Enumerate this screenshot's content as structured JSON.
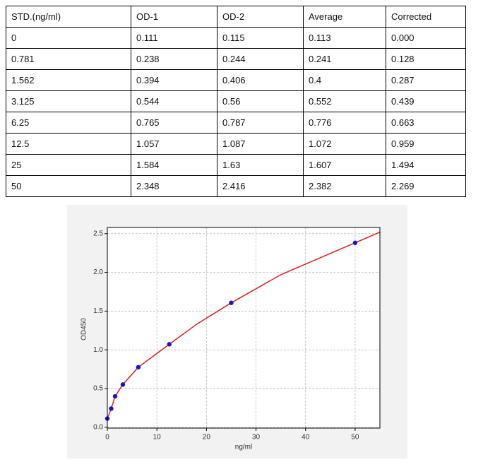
{
  "table": {
    "header": [
      "STD.(ng/ml)",
      "OD-1",
      "OD-2",
      "Average",
      "Corrected"
    ],
    "rows": [
      [
        "0",
        "0.111",
        "0.115",
        "0.113",
        "0.000"
      ],
      [
        "0.781",
        "0.238",
        "0.244",
        "0.241",
        "0.128"
      ],
      [
        "1.562",
        "0.394",
        "0.406",
        "0.4",
        "0.287"
      ],
      [
        "3.125",
        "0.544",
        "0.56",
        "0.552",
        "0.439"
      ],
      [
        "6.25",
        "0.765",
        "0.787",
        "0.776",
        "0.663"
      ],
      [
        "12.5",
        "1.057",
        "1.087",
        "1.072",
        "0.959"
      ],
      [
        "25",
        "1.584",
        "1.63",
        "1.607",
        "1.494"
      ],
      [
        "50",
        "2.348",
        "2.416",
        "2.382",
        "2.269"
      ]
    ]
  },
  "chart_data": {
    "type": "scatter",
    "x_label": "ng/ml",
    "y_label": "OD450",
    "xlim": [
      0,
      55
    ],
    "xticks": [
      0,
      10,
      20,
      30,
      40,
      50
    ],
    "ylim": [
      -0.01,
      2.58
    ],
    "yticks": [
      {
        "value": 0,
        "label": "0.0"
      },
      0.5,
      {
        "value": 1,
        "label": "1.0"
      },
      1.5,
      {
        "value": 2,
        "label": "2.0"
      },
      2.5
    ],
    "grid": true,
    "series": [
      {
        "type": "scatter",
        "color": "#1a10c8",
        "x": [
          0,
          0.781,
          1.562,
          3.125,
          6.25,
          12.5,
          25,
          50
        ],
        "values": [
          0.113,
          0.241,
          0.4,
          0.552,
          0.776,
          1.072,
          1.607,
          2.382
        ]
      },
      {
        "type": "line",
        "color": "#d62020",
        "x": [
          0,
          0.781,
          1.562,
          3.125,
          6.25,
          12.5,
          18,
          25,
          35,
          50,
          55
        ],
        "values": [
          0.113,
          0.241,
          0.4,
          0.552,
          0.776,
          1.072,
          1.33,
          1.607,
          1.97,
          2.382,
          2.52
        ]
      }
    ]
  }
}
